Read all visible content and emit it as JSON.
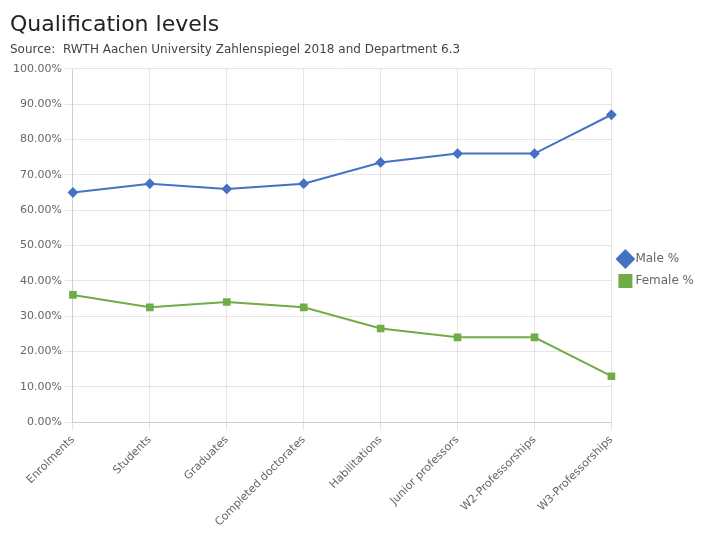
{
  "chart_data": {
    "type": "line",
    "title": "Qualification levels",
    "subtitle": "Source:  RWTH Aachen University Zahlenspiegel 2018 and Department 6.3",
    "categories": [
      "Enrolments",
      "Students",
      "Graduates",
      "Completed doctorates",
      "Habilitations",
      "Junior professors",
      "W2-Professorships",
      "W3-Professorships"
    ],
    "series": [
      {
        "name": "Male %",
        "color": "#4472C4",
        "marker": "diamond",
        "values": [
          65.0,
          67.5,
          66.0,
          67.5,
          73.5,
          76.0,
          76.0,
          87.0
        ]
      },
      {
        "name": "Female %",
        "color": "#70AD47",
        "marker": "square",
        "values": [
          36.0,
          32.5,
          34.0,
          32.5,
          26.5,
          24.0,
          24.0,
          13.0
        ]
      }
    ],
    "ylim": [
      0,
      100
    ],
    "yticks": [
      {
        "value": 0,
        "label": "0.00%"
      },
      {
        "value": 10,
        "label": "10.00%"
      },
      {
        "value": 20,
        "label": "20.00%"
      },
      {
        "value": 30,
        "label": "30.00%"
      },
      {
        "value": 40,
        "label": "40.00%"
      },
      {
        "value": 50,
        "label": "50.00%"
      },
      {
        "value": 60,
        "label": "60.00%"
      },
      {
        "value": 70,
        "label": "70.00%"
      },
      {
        "value": 80,
        "label": "80.00%"
      },
      {
        "value": 90,
        "label": "90.00%"
      },
      {
        "value": 100,
        "label": "100.00%"
      }
    ],
    "grid": true,
    "legend": "right"
  }
}
